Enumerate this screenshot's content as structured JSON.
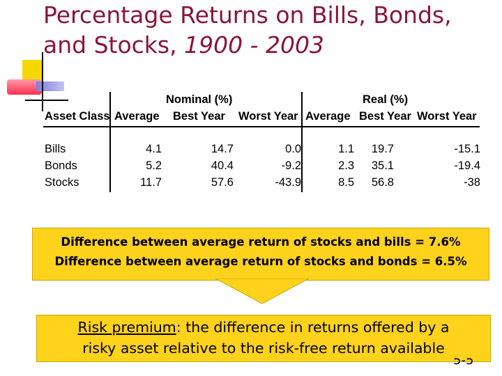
{
  "title": {
    "line1": "Percentage Returns on Bills, Bonds,",
    "line2_main": "and Stocks, ",
    "line2_years": "1900 - 2003"
  },
  "table": {
    "group_headers": [
      "Nominal (%)",
      "Real (%)"
    ],
    "columns": [
      "Asset Class",
      "Average",
      "Best Year",
      "Worst Year",
      "Average",
      "Best Year",
      "Worst Year"
    ],
    "rows": [
      {
        "asset": "Bills",
        "values": [
          "4.1",
          "14.7",
          "0.0",
          "1.1",
          "19.7",
          "-15.1"
        ]
      },
      {
        "asset": "Bonds",
        "values": [
          "5.2",
          "40.4",
          "-9.2",
          "2.3",
          "35.1",
          "-19.4"
        ]
      },
      {
        "asset": "Stocks",
        "values": [
          "11.7",
          "57.6",
          "-43.9",
          "8.5",
          "56.8",
          "-38"
        ]
      }
    ]
  },
  "callout": {
    "line1": "Difference between average return of stocks and bills = 7.6%",
    "line2": "Difference between average return of stocks and bonds = 6.5%"
  },
  "note": {
    "term": "Risk premium",
    "line1_rest": ": the difference in returns offered by a",
    "line2": "risky asset relative to the risk-free return available"
  },
  "slide_number": "5-5",
  "colors": {
    "title": "#8b1538",
    "box_fill": "#ffd21c"
  }
}
